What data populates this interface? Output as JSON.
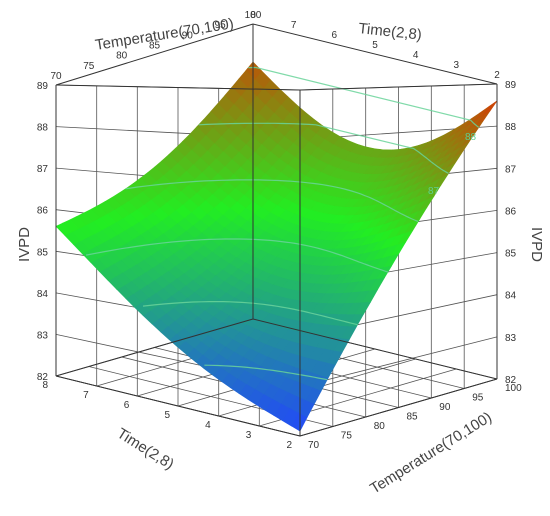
{
  "chart_data": {
    "type": "surface3d",
    "title": "",
    "response": "IVPD",
    "factors": [
      "Time(2,8)",
      "Temperature(70,100)"
    ],
    "axes": {
      "time": {
        "label": "Time(2,8)",
        "range": [
          2,
          8
        ],
        "ticks": [
          "2",
          "3",
          "4",
          "5",
          "6",
          "7",
          "8"
        ]
      },
      "temperature": {
        "label": "Temperature(70,100)",
        "range": [
          70,
          100
        ],
        "ticks": [
          "70",
          "75",
          "80",
          "85",
          "90",
          "95",
          "100"
        ]
      },
      "ivpd": {
        "label": "IVPD",
        "range": [
          82,
          89
        ],
        "ticks": [
          "82",
          "83",
          "84",
          "85",
          "86",
          "87",
          "88",
          "89"
        ]
      }
    },
    "corner_values": [
      {
        "time": 8,
        "temperature": 70,
        "ivpd": 85.6
      },
      {
        "time": 8,
        "temperature": 100,
        "ivpd": 88.1
      },
      {
        "time": 2,
        "temperature": 70,
        "ivpd": 82.1
      },
      {
        "time": 2,
        "temperature": 100,
        "ivpd": 88.6
      }
    ],
    "contour_levels": [
      83,
      84,
      85,
      86,
      87,
      88
    ],
    "contour_labels": [
      "87",
      "88"
    ],
    "colormap": [
      "#2244ff",
      "#22ee22",
      "#ee2200"
    ],
    "grid": true
  }
}
